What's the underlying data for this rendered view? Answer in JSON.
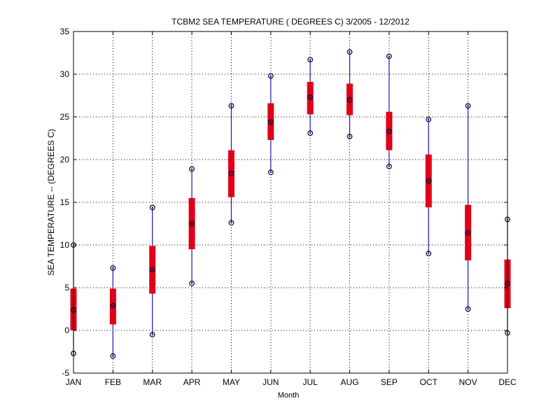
{
  "chart_data": {
    "type": "boxplot",
    "title": "TCBM2  SEA TEMPERATURE ( DEGREES C) 3/2005 - 12/2012",
    "xlabel": "Month",
    "ylabel": "SEA TEMPERATURE -- (DEGREES C)",
    "ylim": [
      -5,
      35
    ],
    "yticks": [
      -5,
      0,
      5,
      10,
      15,
      20,
      25,
      30,
      35
    ],
    "grid": true,
    "categories": [
      "JAN",
      "FEB",
      "MAR",
      "APR",
      "MAY",
      "JUN",
      "JUL",
      "AUG",
      "SEP",
      "OCT",
      "NOV",
      "DEC"
    ],
    "series": [
      {
        "name": "min",
        "values": [
          -2.7,
          -3.0,
          -0.5,
          5.5,
          12.6,
          18.5,
          23.1,
          22.7,
          19.2,
          9.0,
          2.5,
          -0.3
        ]
      },
      {
        "name": "q1",
        "values": [
          0.0,
          0.7,
          4.3,
          9.5,
          15.6,
          22.3,
          25.3,
          25.2,
          21.1,
          14.4,
          8.2,
          2.6
        ]
      },
      {
        "name": "median",
        "values": [
          2.4,
          2.9,
          7.1,
          12.5,
          18.4,
          24.4,
          27.3,
          27.0,
          23.3,
          17.5,
          11.4,
          5.5
        ]
      },
      {
        "name": "q3",
        "values": [
          4.9,
          4.9,
          9.9,
          15.5,
          21.1,
          26.6,
          29.1,
          28.9,
          25.6,
          20.6,
          14.7,
          8.3
        ]
      },
      {
        "name": "max",
        "values": [
          10.0,
          7.3,
          14.4,
          18.9,
          26.3,
          29.8,
          31.7,
          32.6,
          32.1,
          24.7,
          26.3,
          13.0
        ]
      }
    ],
    "colors": {
      "whisker": "#1a1aa6",
      "box": "#e00018",
      "marker": "#000033",
      "grid": "#000000",
      "axis": "#000000"
    }
  }
}
